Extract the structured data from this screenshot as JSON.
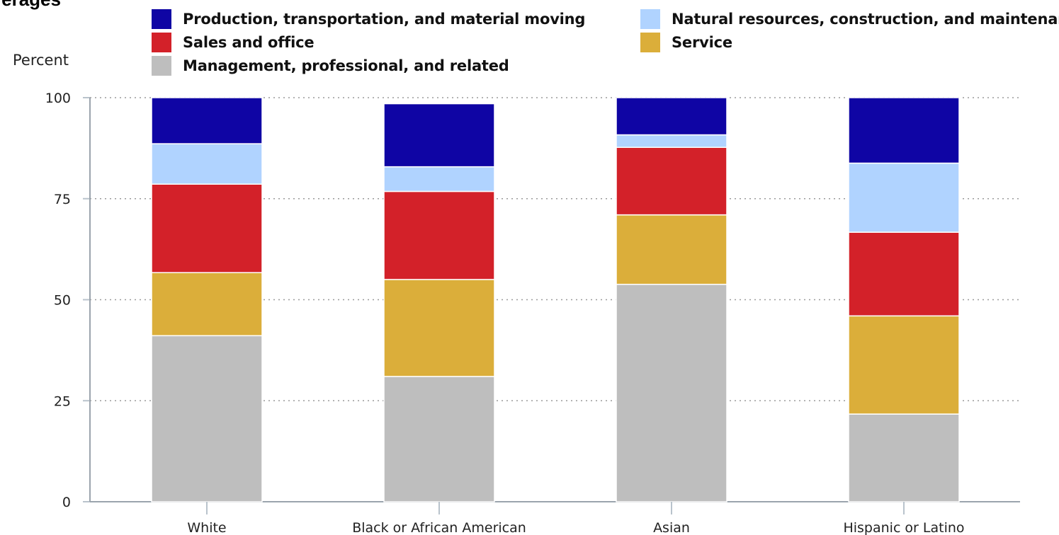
{
  "chart_data": {
    "type": "bar",
    "stacked": true,
    "title": "rerages",
    "ylabel": "Percent",
    "xlabel": "",
    "ylim": [
      0,
      100
    ],
    "yticks": [
      0,
      25,
      50,
      75,
      100
    ],
    "grid": "horizontal dotted",
    "categories": [
      "White",
      "Black or African American",
      "Asian",
      "Hispanic or Latino"
    ],
    "series": [
      {
        "name": "Management, professional, and related",
        "color": "#bebebe",
        "values": [
          41.1,
          31.0,
          53.8,
          21.7
        ]
      },
      {
        "name": "Service",
        "color": "#dbae3a",
        "values": [
          15.6,
          24.0,
          17.2,
          24.3
        ]
      },
      {
        "name": "Sales and office",
        "color": "#d32129",
        "values": [
          21.9,
          21.8,
          16.7,
          20.7
        ]
      },
      {
        "name": "Natural resources, construction, and maintenance",
        "color": "#b0d3ff",
        "values": [
          10.0,
          6.1,
          3.1,
          17.1
        ]
      },
      {
        "name": "Production, transportation, and material moving",
        "color": "#0f05a4",
        "values": [
          11.4,
          15.6,
          9.2,
          16.2
        ]
      }
    ]
  }
}
